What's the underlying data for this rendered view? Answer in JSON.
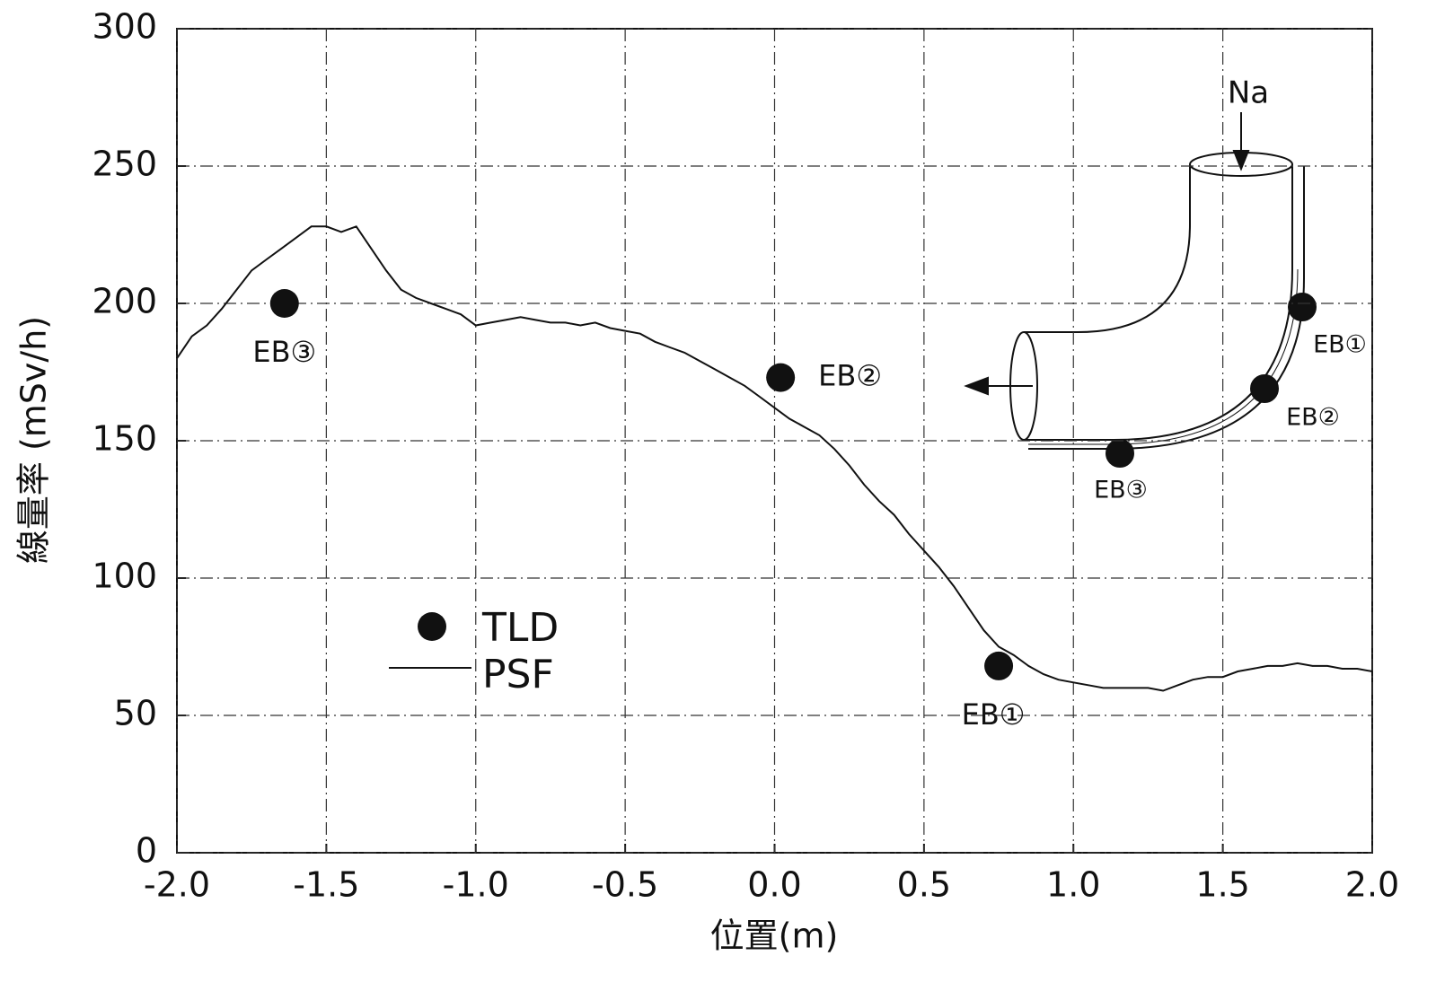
{
  "chart_data": {
    "type": "line",
    "xlabel": "位置(m)",
    "ylabel": "線量率 (mSv/h)",
    "xlim": [
      -2.0,
      2.0
    ],
    "ylim": [
      0,
      300
    ],
    "xticks": [
      {
        "value": -2.0,
        "label": "-2.0"
      },
      -1.5,
      {
        "value": -1.0,
        "label": "-1.0"
      },
      -0.5,
      {
        "value": 0.0,
        "label": "0.0"
      },
      0.5,
      {
        "value": 1.0,
        "label": "1.0"
      },
      1.5,
      {
        "value": 2.0,
        "label": "2.0"
      }
    ],
    "yticks": [
      0,
      50,
      100,
      150,
      200,
      250,
      300
    ],
    "grid": true,
    "series": [
      {
        "name": "TLD",
        "type": "scatter",
        "color": "#111111",
        "x": [
          -1.64,
          0.02,
          0.75
        ],
        "values": [
          200,
          173,
          68
        ],
        "point_labels": [
          "EB③",
          "EB②",
          "EB①"
        ]
      },
      {
        "name": "PSF",
        "type": "line",
        "color": "#111111",
        "x": [
          -2.0,
          -1.95,
          -1.9,
          -1.85,
          -1.8,
          -1.75,
          -1.7,
          -1.65,
          -1.6,
          -1.55,
          -1.5,
          -1.45,
          -1.4,
          -1.35,
          -1.3,
          -1.25,
          -1.2,
          -1.15,
          -1.1,
          -1.05,
          -1.0,
          -0.95,
          -0.9,
          -0.85,
          -0.8,
          -0.75,
          -0.7,
          -0.65,
          -0.6,
          -0.55,
          -0.5,
          -0.45,
          -0.4,
          -0.35,
          -0.3,
          -0.25,
          -0.2,
          -0.15,
          -0.1,
          -0.05,
          0.0,
          0.05,
          0.1,
          0.15,
          0.2,
          0.25,
          0.3,
          0.35,
          0.4,
          0.45,
          0.5,
          0.55,
          0.6,
          0.65,
          0.7,
          0.75,
          0.8,
          0.85,
          0.9,
          0.95,
          1.0,
          1.05,
          1.1,
          1.15,
          1.2,
          1.25,
          1.3,
          1.35,
          1.4,
          1.45,
          1.5,
          1.55,
          1.6,
          1.65,
          1.7,
          1.75,
          1.8,
          1.85,
          1.9,
          1.95,
          2.0
        ],
        "values": [
          180,
          188,
          192,
          198,
          205,
          212,
          216,
          220,
          224,
          228,
          228,
          226,
          228,
          220,
          212,
          205,
          202,
          200,
          198,
          196,
          192,
          193,
          194,
          195,
          194,
          193,
          193,
          192,
          193,
          191,
          190,
          189,
          186,
          184,
          182,
          179,
          176,
          173,
          170,
          166,
          162,
          158,
          155,
          152,
          147,
          141,
          134,
          128,
          123,
          116,
          110,
          104,
          97,
          89,
          81,
          75,
          72,
          68,
          65,
          63,
          62,
          61,
          60,
          60,
          60,
          60,
          59,
          61,
          63,
          64,
          64,
          66,
          67,
          68,
          68,
          69,
          68,
          68,
          67,
          67,
          66
        ]
      }
    ],
    "inset": {
      "inlet_label": "Na",
      "point_labels": [
        "EB①",
        "EB②",
        "EB③"
      ]
    }
  }
}
